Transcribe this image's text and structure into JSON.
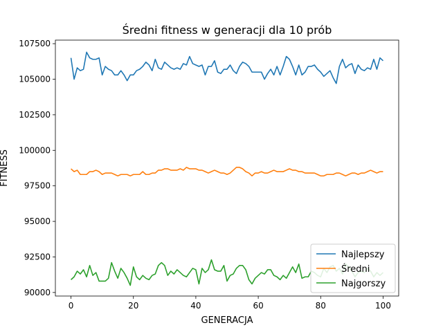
{
  "chart_data": {
    "type": "line",
    "title": "Średni fitness w generacji dla 10 prób",
    "xlabel": "GENERACJA",
    "ylabel": "FITNESS",
    "xlim": [
      -5,
      105
    ],
    "ylim": [
      89750,
      107750
    ],
    "xticks": [
      0,
      20,
      40,
      60,
      80,
      100
    ],
    "yticks": [
      90000,
      92500,
      95000,
      97500,
      100000,
      102500,
      105000,
      107500
    ],
    "grid": false,
    "legend_position": "lower-right",
    "x": [
      0,
      1,
      2,
      3,
      4,
      5,
      6,
      7,
      8,
      9,
      10,
      11,
      12,
      13,
      14,
      15,
      16,
      17,
      18,
      19,
      20,
      21,
      22,
      23,
      24,
      25,
      26,
      27,
      28,
      29,
      30,
      31,
      32,
      33,
      34,
      35,
      36,
      37,
      38,
      39,
      40,
      41,
      42,
      43,
      44,
      45,
      46,
      47,
      48,
      49,
      50,
      51,
      52,
      53,
      54,
      55,
      56,
      57,
      58,
      59,
      60,
      61,
      62,
      63,
      64,
      65,
      66,
      67,
      68,
      69,
      70,
      71,
      72,
      73,
      74,
      75,
      76,
      77,
      78,
      79,
      80,
      81,
      82,
      83,
      84,
      85,
      86,
      87,
      88,
      89,
      90,
      91,
      92,
      93,
      94,
      95,
      96,
      97,
      98,
      99,
      100
    ],
    "series": [
      {
        "name": "Najlepszy",
        "color": "#1f77b4",
        "values": [
          106500,
          105000,
          105800,
          105600,
          105700,
          106900,
          106500,
          106400,
          106400,
          106500,
          105300,
          105900,
          105700,
          105600,
          105300,
          105300,
          105600,
          105300,
          104900,
          105300,
          105300,
          105600,
          105700,
          105900,
          106200,
          106000,
          105600,
          106400,
          105800,
          105700,
          106200,
          106000,
          105800,
          105700,
          105800,
          105700,
          106100,
          106000,
          106600,
          106100,
          106000,
          105900,
          106000,
          105300,
          105900,
          105900,
          106300,
          105500,
          105400,
          105700,
          105700,
          106000,
          105600,
          105400,
          105900,
          106200,
          106100,
          105900,
          105500,
          105500,
          105500,
          105500,
          105000,
          105400,
          105700,
          105300,
          105900,
          105300,
          105900,
          106600,
          106400,
          105900,
          105300,
          106000,
          105300,
          105500,
          105900,
          105900,
          106000,
          105700,
          105500,
          105200,
          105400,
          105600,
          105100,
          104700,
          105900,
          106400,
          105800,
          106000,
          106100,
          105400,
          106000,
          105700,
          105600,
          105800,
          105700,
          106400,
          105700,
          106500,
          106300
        ]
      },
      {
        "name": "Średni",
        "color": "#ff7f0e",
        "values": [
          98700,
          98500,
          98600,
          98300,
          98300,
          98300,
          98500,
          98500,
          98600,
          98500,
          98300,
          98400,
          98400,
          98400,
          98300,
          98200,
          98300,
          98300,
          98300,
          98200,
          98300,
          98300,
          98300,
          98500,
          98300,
          98300,
          98400,
          98400,
          98600,
          98600,
          98700,
          98700,
          98600,
          98600,
          98600,
          98700,
          98600,
          98800,
          98700,
          98700,
          98700,
          98600,
          98600,
          98500,
          98400,
          98500,
          98600,
          98500,
          98400,
          98400,
          98300,
          98400,
          98600,
          98800,
          98800,
          98700,
          98500,
          98400,
          98200,
          98400,
          98400,
          98500,
          98400,
          98400,
          98500,
          98600,
          98500,
          98500,
          98500,
          98600,
          98700,
          98600,
          98600,
          98500,
          98500,
          98400,
          98400,
          98400,
          98400,
          98300,
          98200,
          98200,
          98300,
          98300,
          98300,
          98400,
          98400,
          98300,
          98200,
          98300,
          98400,
          98400,
          98300,
          98400,
          98400,
          98500,
          98600,
          98500,
          98400,
          98500,
          98500
        ]
      },
      {
        "name": "Najgorszy",
        "color": "#2ca02c",
        "values": [
          90900,
          91100,
          91500,
          91300,
          91600,
          91100,
          91900,
          91200,
          91400,
          90800,
          90800,
          90800,
          91000,
          92100,
          91500,
          91000,
          91700,
          91400,
          91000,
          90500,
          91800,
          91100,
          90900,
          91200,
          91000,
          90900,
          91200,
          91300,
          91900,
          92100,
          91900,
          91200,
          91500,
          91300,
          91600,
          91400,
          91200,
          91100,
          91400,
          91700,
          91600,
          90600,
          91700,
          91400,
          91600,
          92300,
          91600,
          91500,
          91500,
          91900,
          90800,
          91200,
          91300,
          91700,
          91900,
          91900,
          91600,
          90900,
          90600,
          91000,
          91200,
          91400,
          91300,
          91600,
          91600,
          91200,
          91100,
          90900,
          91200,
          91000,
          91400,
          91800,
          91400,
          92000,
          91000,
          91100,
          91100,
          91500,
          91400,
          91200,
          91100,
          91700,
          91400,
          91800,
          91900,
          91500,
          91700,
          91300,
          92000,
          91800,
          91500,
          91100,
          91400,
          91500,
          91400,
          91700,
          91500,
          91100,
          91400,
          91200,
          91400
        ]
      }
    ]
  }
}
